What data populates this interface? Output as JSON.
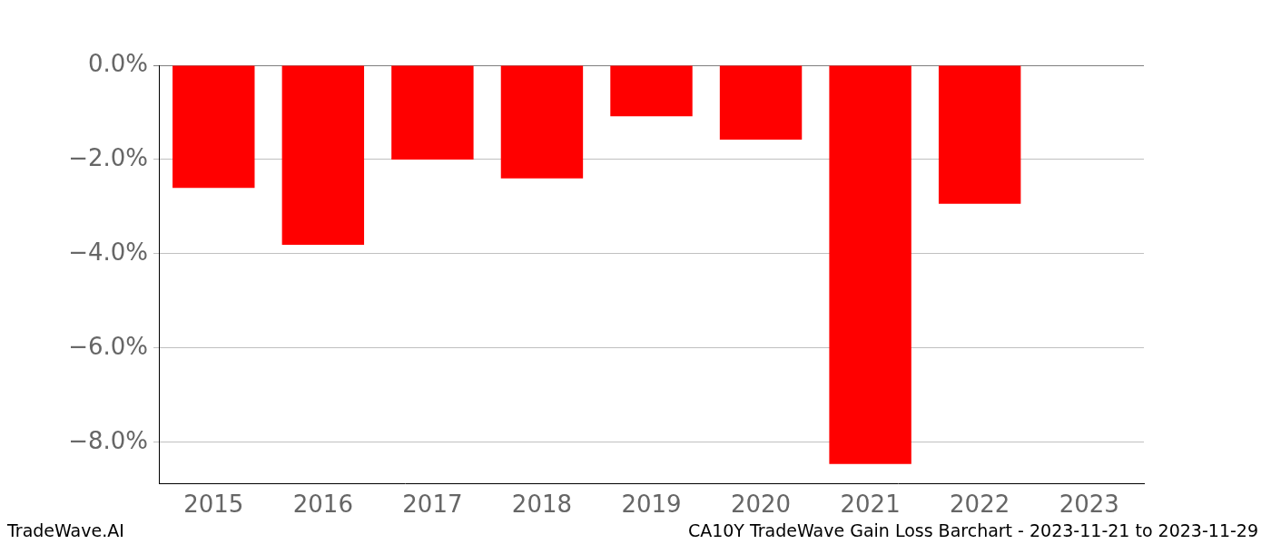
{
  "chart_data": {
    "type": "bar",
    "title": "CA10Y TradeWave Gain Loss Barchart - 2023-11-21 to 2023-11-29",
    "annotations": [
      "TradeWave.AI"
    ],
    "categories": [
      "2015",
      "2016",
      "2017",
      "2018",
      "2019",
      "2020",
      "2021",
      "2022",
      "2023"
    ],
    "values": [
      -2.6,
      -3.81,
      -2.0,
      -2.4,
      -1.08,
      -1.58,
      -8.46,
      -2.94,
      null
    ],
    "color": "#ff0000",
    "ylim": [
      -8.87,
      0
    ],
    "yticks": [
      {
        "value": 0,
        "label": "0.0%"
      },
      {
        "value": -2,
        "label": "−2.0%"
      },
      {
        "value": -4,
        "label": "−4.0%"
      },
      {
        "value": -6,
        "label": "−6.0%"
      },
      {
        "value": -8,
        "label": "−8.0%"
      }
    ],
    "grid": true
  }
}
